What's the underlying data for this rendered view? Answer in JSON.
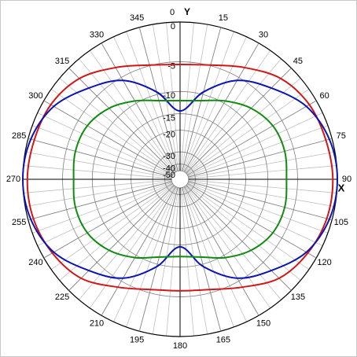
{
  "chart_data": {
    "type": "polar",
    "axis_labels": {
      "y": "Y",
      "x": "X"
    },
    "radial_scale": "arrl",
    "rlim": [
      -50,
      0
    ],
    "rticks": [
      0,
      -5,
      -10,
      -15,
      -20,
      -30,
      -40,
      -50
    ],
    "angle_ticks": [
      0,
      15,
      30,
      45,
      60,
      75,
      90,
      105,
      120,
      135,
      150,
      165,
      180,
      195,
      210,
      225,
      240,
      255,
      270,
      285,
      300,
      315,
      330,
      345
    ],
    "minor_angle_step": 5,
    "angles": [
      0,
      15,
      30,
      45,
      60,
      75,
      90,
      105,
      120,
      135,
      150,
      165,
      180,
      195,
      210,
      225,
      240,
      255,
      270,
      285,
      300,
      315,
      330,
      345
    ],
    "series": [
      {
        "color": "#d01818",
        "values": [
          -5.4,
          -4.9,
          -3.4,
          -1.7,
          -0.9,
          -0.7,
          -0.5,
          -0.6,
          -1.1,
          -2.0,
          -4.0,
          -5.5,
          -5.9,
          -5.5,
          -4.0,
          -2.0,
          -1.1,
          -0.6,
          -0.5,
          -0.7,
          -0.9,
          -1.7,
          -3.4,
          -4.9
        ]
      },
      {
        "color": "#0a14b4",
        "values": [
          -14.3,
          -9.5,
          -5.5,
          -3.4,
          -1.3,
          -0.3,
          0,
          -0.3,
          -1.3,
          -3.4,
          -5.5,
          -9.5,
          -14.5,
          -9.5,
          -5.5,
          -3.4,
          -1.3,
          -0.3,
          0,
          -0.3,
          -1.3,
          -3.4,
          -5.5,
          -9.5
        ]
      },
      {
        "color": "#108c10",
        "values": [
          -11.9,
          -11.3,
          -9.5,
          -7.7,
          -6.6,
          -6.4,
          -6.7,
          -6.4,
          -6.6,
          -7.7,
          -9.5,
          -11.5,
          -12.2,
          -11.5,
          -9.5,
          -7.7,
          -6.6,
          -6.4,
          -6.7,
          -6.4,
          -6.6,
          -7.7,
          -9.5,
          -11.3
        ]
      }
    ]
  }
}
